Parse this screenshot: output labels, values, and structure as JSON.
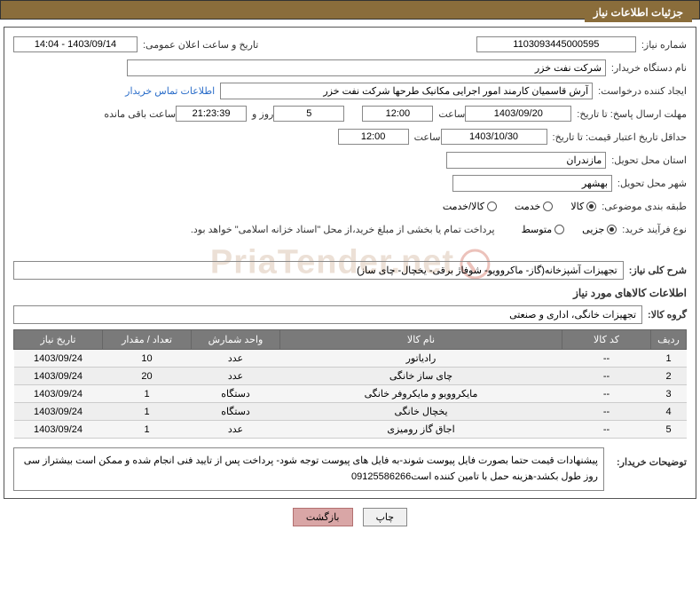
{
  "header": {
    "title": "جزئیات اطلاعات نیاز"
  },
  "fields": {
    "need_no_label": "شماره نیاز:",
    "need_no": "1103093445000595",
    "announce_label": "تاریخ و ساعت اعلان عمومی:",
    "announce_value": "1403/09/14 - 14:04",
    "buyer_org_label": "نام دستگاه خریدار:",
    "buyer_org": "شرکت نفت خزر",
    "requester_label": "ایجاد کننده درخواست:",
    "requester": "آرش قاسمیان کارمند امور اجرایی مکانیک طرحها شرکت نفت خزر",
    "contact_link": "اطلاعات تماس خریدار",
    "deadline_label": "مهلت ارسال پاسخ: تا تاریخ:",
    "deadline_date": "1403/09/20",
    "time_label": "ساعت",
    "deadline_time": "12:00",
    "days_label_pre": "",
    "days_value": "5",
    "days_suffix": "روز و",
    "remaining_time": "21:23:39",
    "remaining_suffix": "ساعت باقی مانده",
    "validity_label": "حداقل تاریخ اعتبار قیمت: تا تاریخ:",
    "validity_date": "1403/10/30",
    "validity_time": "12:00",
    "province_label": "استان محل تحویل:",
    "province": "مازندران",
    "city_label": "شهر محل تحویل:",
    "city": "بهشهر",
    "category_label": "طبقه بندی موضوعی:",
    "cat_opt1": "کالا",
    "cat_opt2": "خدمت",
    "cat_opt3": "کالا/خدمت",
    "purchase_type_label": "نوع فرآیند خرید:",
    "pt_opt1": "جزیی",
    "pt_opt2": "متوسط",
    "purchase_note": "پرداخت تمام یا بخشی از مبلغ خرید،از محل \"اسناد خزانه اسلامی\" خواهد بود.",
    "overall_label": "شرح کلی نیاز:",
    "overall_desc": "تجهیزات آشپزخانه(گاز- ماکروویو- شوفاژ برقی- یخچال- چای ساز)",
    "goods_section": "اطلاعات کالاهای مورد نیاز",
    "group_label": "گروه کالا:",
    "group_value": "تجهیزات خانگی، اداری و صنعتی",
    "buyer_notes_label": "توضیحات خریدار:",
    "buyer_notes": "پیشنهادات قیمت حتما بصورت فایل پیوست شوند-به فایل های پیوست توجه شود- پرداخت پس از تایید فنی انجام شده و ممکن است بیشتراز سی روز طول بکشد-هزینه حمل با تامین کننده است09125586266"
  },
  "table": {
    "headers": {
      "row": "ردیف",
      "code": "کد کالا",
      "name": "نام کالا",
      "unit": "واحد شمارش",
      "qty": "تعداد / مقدار",
      "date": "تاریخ نیاز"
    },
    "rows": [
      {
        "n": "1",
        "code": "--",
        "name": "رادیاتور",
        "unit": "عدد",
        "qty": "10",
        "date": "1403/09/24"
      },
      {
        "n": "2",
        "code": "--",
        "name": "چای ساز خانگی",
        "unit": "عدد",
        "qty": "20",
        "date": "1403/09/24"
      },
      {
        "n": "3",
        "code": "--",
        "name": "مایکروویو و مایکروفر خانگی",
        "unit": "دستگاه",
        "qty": "1",
        "date": "1403/09/24"
      },
      {
        "n": "4",
        "code": "--",
        "name": "یخچال خانگی",
        "unit": "دستگاه",
        "qty": "1",
        "date": "1403/09/24"
      },
      {
        "n": "5",
        "code": "--",
        "name": "اجاق گاز رومیزی",
        "unit": "عدد",
        "qty": "1",
        "date": "1403/09/24"
      }
    ]
  },
  "buttons": {
    "print": "چاپ",
    "back": "بازگشت"
  },
  "watermark": "PriaTender.net",
  "colors": {
    "header_bg": "#8a6d3b",
    "header_fg": "#ffffff",
    "th_bg": "#7a7a7a",
    "row_bg": "#f5f5f5",
    "row_alt": "#eeeeee",
    "link": "#2a6dc9",
    "btn_back_bg": "#d9a6a6"
  }
}
